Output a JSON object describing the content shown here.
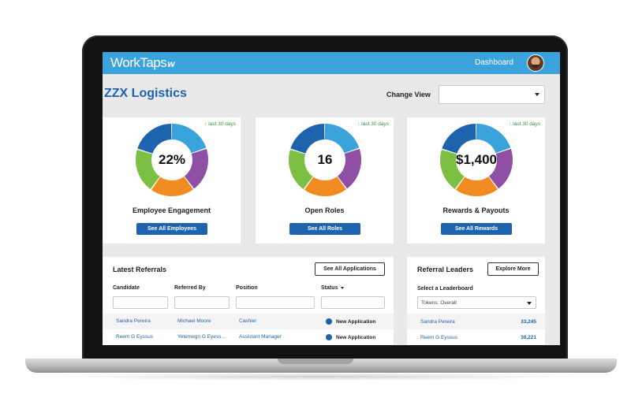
{
  "topbar": {
    "logo_text": "WorkTaps",
    "logo_mark": "w",
    "nav_dashboard": "Dashboard"
  },
  "header": {
    "title": "ZZX Logistics",
    "change_view_label": "Change View",
    "change_view_value": ""
  },
  "stats": [
    {
      "trend": "↑ last 30 days",
      "value": "22%",
      "label": "Employee Engagement",
      "button": "See All Employees"
    },
    {
      "trend": "↑ last 30 days",
      "value": "16",
      "label": "Open Roles",
      "button": "See All Roles"
    },
    {
      "trend": "↑ last 30 days",
      "value": "$1,400",
      "label": "Rewards & Payouts",
      "button": "See All Rewards"
    }
  ],
  "donut_colors": [
    "#3aa3dc",
    "#8e4fa5",
    "#f28b22",
    "#7bc043",
    "#1d63ad"
  ],
  "referrals": {
    "title": "Latest Referrals",
    "button": "See All Applications",
    "columns": [
      "Candidate",
      "Referred By",
      "Position",
      "Status"
    ],
    "rows": [
      {
        "candidate": "Sandra Pereira",
        "referred_by": "Michael Moore",
        "position": "Cashier",
        "status": "New Application"
      },
      {
        "candidate": "Reem G Eyssus",
        "referred_by": "Yetemegn G Eyess...",
        "position": "Assistant Manager",
        "status": "New Application"
      }
    ]
  },
  "leaders": {
    "title": "Referral Leaders",
    "button": "Explore More",
    "select_label": "Select a Leaderboard",
    "select_value": "Tokens: Overall",
    "rows": [
      {
        "name": "Sandra Pereira",
        "score": "33,245"
      },
      {
        "name": "Reem G Eyssus",
        "score": "30,221"
      }
    ]
  }
}
